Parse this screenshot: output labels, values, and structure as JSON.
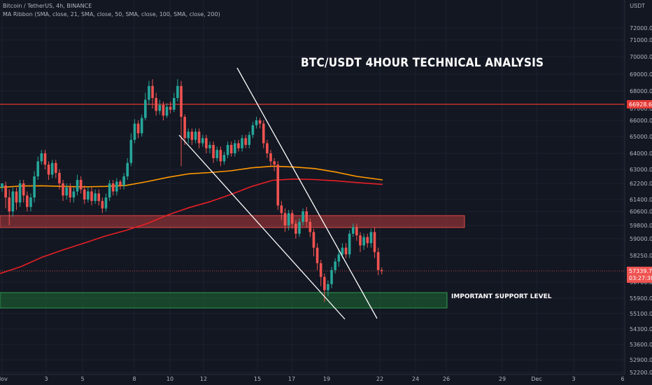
{
  "header": {
    "symbol_line": "Bitcoin / TetherUS, 4h, BINANCE",
    "indicator_line": "MA Ribbon (SMA, close, 21, SMA, close, 50, SMA, close, 100, SMA, close, 200)",
    "quote_currency": "USDT"
  },
  "annotations": {
    "title": "BTC/USDT 4HOUR TECHNICAL ANALYSIS",
    "support_label": "IMPORTANT SUPPORT LEVEL"
  },
  "chart_data": {
    "type": "candlestick",
    "symbol": "BTC/USDT",
    "timeframe": "4h",
    "y_ticks": [
      72000,
      71000,
      70000,
      69000,
      68000,
      67000,
      66000,
      65000,
      64000,
      63000,
      62200,
      61400,
      60600,
      59800,
      59000,
      58250,
      56700,
      55900,
      55100,
      54300,
      53600,
      52900,
      52200
    ],
    "y_tick_labels": [
      "72000.00",
      "71000.00",
      "70000.00",
      "69000.00",
      "68000.00",
      "67000.00",
      "66000.00",
      "65000.00",
      "64000.00",
      "63000.00",
      "62200.00",
      "61400.00",
      "60600.00",
      "59800.00",
      "59000.00",
      "58250.00",
      "56700.00",
      "55900.00",
      "55100.00",
      "54300.00",
      "53600.00",
      "52900.00",
      "52200.00"
    ],
    "x_tick_labels": [
      "Nov",
      "3",
      "5",
      "8",
      "10",
      "12",
      "15",
      "17",
      "19",
      "22",
      "24",
      "26",
      "29",
      "Dec",
      "3",
      "6"
    ],
    "current_price": {
      "label": "57339.76",
      "value": 57339.76,
      "timer": "03:27:38"
    },
    "resistance_line": {
      "label": "66928.68",
      "value": 66928.68
    },
    "zones": [
      {
        "name": "resistance-zone",
        "from": 59900,
        "to": 60200,
        "color": "#b33a3a"
      },
      {
        "name": "support-zone",
        "from": 55300,
        "to": 55800,
        "color": "#1e6b34"
      }
    ],
    "colors": {
      "up": "#26a69a",
      "down": "#ef5350",
      "ma_orange": "#ff9800",
      "ma_red": "#e81f25",
      "background": "#131722"
    },
    "moving_averages": [
      {
        "period": 100,
        "color": "#ff9800",
        "points": [
          [
            0,
            62000
          ],
          [
            30,
            62070
          ],
          [
            60,
            62080
          ],
          [
            90,
            62050
          ],
          [
            120,
            62030
          ],
          [
            150,
            62050
          ],
          [
            180,
            62100
          ],
          [
            210,
            62300
          ],
          [
            240,
            62550
          ],
          [
            270,
            62750
          ],
          [
            300,
            62820
          ],
          [
            330,
            62920
          ],
          [
            360,
            63100
          ],
          [
            390,
            63200
          ],
          [
            420,
            63150
          ],
          [
            450,
            63050
          ],
          [
            480,
            62850
          ],
          [
            510,
            62600
          ],
          [
            547,
            62400
          ]
        ]
      },
      {
        "period": 200,
        "color": "#e81f25",
        "points": [
          [
            0,
            57200
          ],
          [
            30,
            57600
          ],
          [
            60,
            58150
          ],
          [
            90,
            58500
          ],
          [
            120,
            58800
          ],
          [
            150,
            59150
          ],
          [
            180,
            59500
          ],
          [
            210,
            59900
          ],
          [
            240,
            60400
          ],
          [
            270,
            60850
          ],
          [
            300,
            61250
          ],
          [
            330,
            61650
          ],
          [
            360,
            62050
          ],
          [
            390,
            62380
          ],
          [
            420,
            62450
          ],
          [
            450,
            62420
          ],
          [
            480,
            62350
          ],
          [
            510,
            62250
          ],
          [
            547,
            62150
          ]
        ]
      }
    ],
    "candles": [
      [
        62000,
        62200,
        61800,
        62100
      ],
      [
        62100,
        61500,
        60800,
        62300
      ],
      [
        61500,
        60600,
        59800,
        61900
      ],
      [
        60600,
        61800,
        60300,
        62000
      ],
      [
        61800,
        61200,
        60700,
        62000
      ],
      [
        61200,
        62200,
        60900,
        62400
      ],
      [
        62200,
        61600,
        61200,
        62400
      ],
      [
        61600,
        60900,
        60600,
        61800
      ],
      [
        60900,
        61500,
        60600,
        61700
      ],
      [
        61500,
        62600,
        61200,
        62900
      ],
      [
        62600,
        63500,
        62400,
        63800
      ],
      [
        63500,
        64000,
        63300,
        64200
      ],
      [
        64000,
        63300,
        63000,
        64200
      ],
      [
        63300,
        62700,
        62400,
        63500
      ],
      [
        62700,
        63400,
        62500,
        63600
      ],
      [
        63400,
        62800,
        62500,
        63600
      ],
      [
        62800,
        62200,
        61900,
        63000
      ],
      [
        62200,
        61600,
        61300,
        62400
      ],
      [
        61600,
        62000,
        61400,
        62200
      ],
      [
        62000,
        61500,
        61200,
        62200
      ],
      [
        61500,
        61800,
        61200,
        62000
      ],
      [
        61800,
        62400,
        61600,
        62700
      ],
      [
        62400,
        61900,
        61700,
        62600
      ],
      [
        61900,
        61400,
        61100,
        62100
      ],
      [
        61400,
        61800,
        61200,
        62000
      ],
      [
        61800,
        61300,
        61000,
        62000
      ],
      [
        61300,
        61700,
        61100,
        61900
      ],
      [
        61700,
        61300,
        61000,
        61900
      ],
      [
        61300,
        60800,
        60500,
        61500
      ],
      [
        60800,
        61500,
        60600,
        61700
      ],
      [
        61500,
        62200,
        61300,
        62400
      ],
      [
        62200,
        61800,
        61600,
        62400
      ],
      [
        61800,
        62300,
        61600,
        62500
      ],
      [
        62300,
        62100,
        61900,
        62400
      ],
      [
        62100,
        62600,
        61900,
        62800
      ],
      [
        62600,
        63400,
        62400,
        63700
      ],
      [
        63400,
        64800,
        63200,
        65200
      ],
      [
        64800,
        65800,
        64600,
        66100
      ],
      [
        65800,
        65200,
        64900,
        66000
      ],
      [
        65200,
        66200,
        65000,
        66500
      ],
      [
        66200,
        67500,
        66000,
        67900
      ],
      [
        67500,
        68300,
        67200,
        68600
      ],
      [
        68300,
        67600,
        67000,
        68700
      ],
      [
        67600,
        66800,
        66400,
        67900
      ],
      [
        66800,
        67200,
        66500,
        67500
      ],
      [
        67200,
        66400,
        66000,
        67400
      ],
      [
        66400,
        67100,
        66200,
        67300
      ],
      [
        67100,
        66900,
        66600,
        67400
      ],
      [
        66900,
        67600,
        66700,
        67900
      ],
      [
        67600,
        68300,
        67400,
        68700
      ],
      [
        68300,
        66300,
        63200,
        68600
      ],
      [
        66300,
        64900,
        64500,
        66500
      ],
      [
        64900,
        65300,
        64600,
        65500
      ],
      [
        65300,
        64800,
        64500,
        65500
      ],
      [
        64800,
        65300,
        64600,
        65500
      ],
      [
        65300,
        64600,
        64300,
        65500
      ],
      [
        64600,
        64900,
        64400,
        65100
      ],
      [
        64900,
        64300,
        64000,
        65100
      ],
      [
        64300,
        64500,
        64000,
        64700
      ],
      [
        64500,
        63700,
        63400,
        64700
      ],
      [
        63700,
        64200,
        63500,
        64400
      ],
      [
        64200,
        63500,
        63200,
        64400
      ],
      [
        63500,
        63900,
        63300,
        64100
      ],
      [
        63900,
        64500,
        63700,
        64700
      ],
      [
        64500,
        64000,
        63800,
        64700
      ],
      [
        64000,
        64600,
        63800,
        64800
      ],
      [
        64600,
        64300,
        64100,
        64800
      ],
      [
        64300,
        64900,
        64100,
        65100
      ],
      [
        64900,
        64500,
        64300,
        65100
      ],
      [
        64500,
        65100,
        64300,
        65300
      ],
      [
        65100,
        65700,
        64900,
        65900
      ],
      [
        65700,
        66000,
        65500,
        66300
      ],
      [
        66000,
        65800,
        65500,
        66200
      ],
      [
        65800,
        64600,
        64300,
        66000
      ],
      [
        64600,
        64000,
        63700,
        64800
      ],
      [
        64000,
        63500,
        63200,
        64200
      ],
      [
        63500,
        63300,
        62900,
        63700
      ],
      [
        63300,
        61000,
        60700,
        63500
      ],
      [
        61000,
        60500,
        60100,
        61300
      ],
      [
        60500,
        59800,
        59400,
        60800
      ],
      [
        59800,
        60500,
        59500,
        60700
      ],
      [
        60500,
        59900,
        59600,
        60700
      ],
      [
        59900,
        59300,
        59000,
        60100
      ],
      [
        59300,
        60000,
        59100,
        60200
      ],
      [
        60000,
        60600,
        59800,
        60800
      ],
      [
        60600,
        60000,
        59700,
        60900
      ],
      [
        60000,
        59400,
        59100,
        60200
      ],
      [
        59400,
        58600,
        58200,
        59600
      ],
      [
        58600,
        57800,
        57400,
        58800
      ],
      [
        57800,
        57000,
        56500,
        58000
      ],
      [
        57000,
        56300,
        55700,
        57200
      ],
      [
        56300,
        56600,
        56000,
        56800
      ],
      [
        56600,
        57400,
        56400,
        57600
      ],
      [
        57400,
        57900,
        57200,
        58100
      ],
      [
        57900,
        58300,
        57600,
        58500
      ],
      [
        58300,
        58600,
        58100,
        58800
      ],
      [
        58600,
        58300,
        58100,
        58800
      ],
      [
        58300,
        59300,
        58100,
        59500
      ],
      [
        59300,
        59700,
        59100,
        59900
      ],
      [
        59700,
        59200,
        58900,
        59900
      ],
      [
        59200,
        58700,
        58400,
        59400
      ],
      [
        58700,
        59100,
        58500,
        59300
      ],
      [
        59100,
        58800,
        58600,
        59300
      ],
      [
        58800,
        59400,
        58600,
        59600
      ],
      [
        59400,
        58400,
        58100,
        59700
      ],
      [
        58400,
        57400,
        57100,
        58600
      ],
      [
        57400,
        57340,
        57150,
        57550
      ]
    ]
  }
}
